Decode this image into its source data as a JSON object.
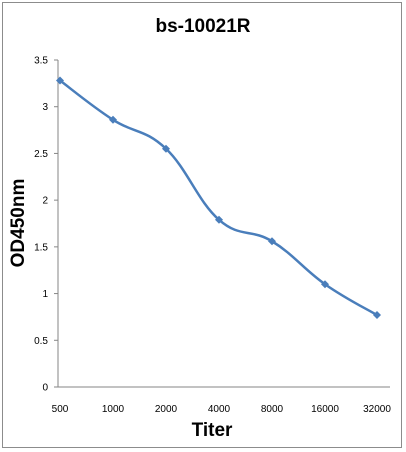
{
  "chart_data": {
    "type": "line",
    "title": "bs-10021R",
    "xlabel": "Titer",
    "ylabel": "OD450nm",
    "categories": [
      "500",
      "1000",
      "2000",
      "4000",
      "8000",
      "16000",
      "32000"
    ],
    "series": [
      {
        "name": "",
        "values": [
          3.28,
          2.86,
          2.55,
          1.79,
          1.56,
          1.1,
          0.77
        ],
        "color": "#4a7ebb"
      }
    ],
    "ylim": [
      0,
      3.5
    ],
    "yticks": [
      "0",
      "0.5",
      "1",
      "1.5",
      "2",
      "2.5",
      "3",
      "3.5"
    ],
    "grid": false,
    "legend": "none",
    "smooth": true,
    "marker": "diamond"
  }
}
